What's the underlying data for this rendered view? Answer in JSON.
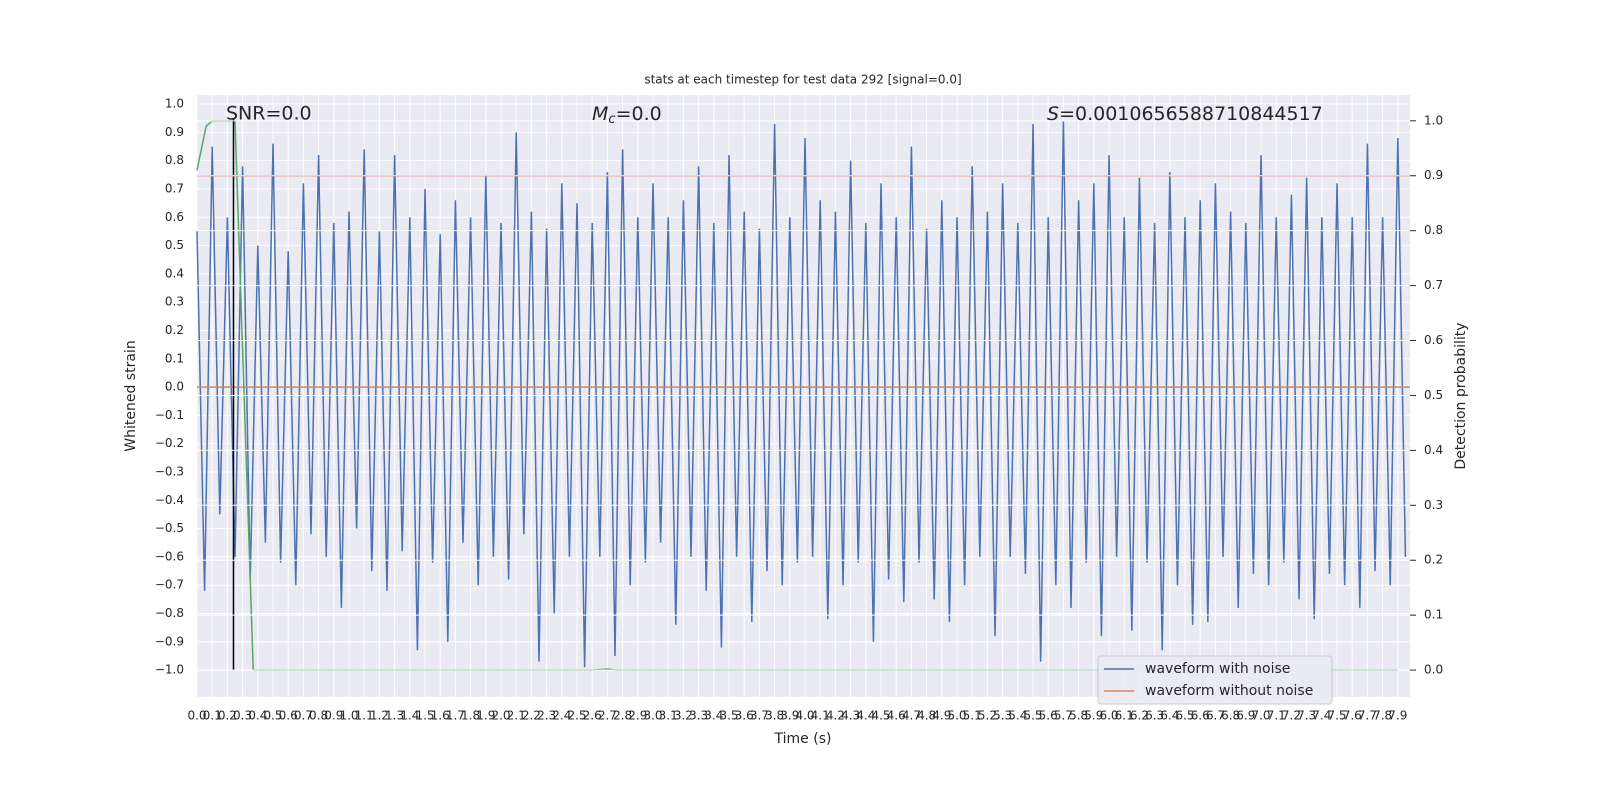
{
  "chart_data": {
    "type": "line",
    "title": "stats at each timestep for test data 292 [signal=0.0]",
    "xlabel": "Time (s)",
    "ylabel": "Whitened strain",
    "y2label": "Detection probability",
    "snr_label": "SNR=0.0",
    "mc_label": {
      "symbol": "M",
      "subscript": "c",
      "text": "=0.0"
    },
    "s_label": {
      "symbol": "S",
      "text": "=0.0010656588710844517"
    },
    "xlim": [
      0,
      7.98
    ],
    "ylim": [
      -1.095,
      1.032
    ],
    "y2lim": [
      -0.049,
      1.047
    ],
    "grid": true,
    "legend": "lower right",
    "xticks": [
      {
        "value": 0,
        "label": "0.0"
      },
      0.1,
      0.2,
      0.3,
      0.4,
      0.5,
      0.6,
      0.7,
      0.8,
      0.9,
      {
        "value": 1,
        "label": "1.0"
      },
      1.1,
      1.2,
      1.3,
      1.4,
      1.5,
      1.6,
      1.7,
      1.8,
      1.9,
      {
        "value": 2,
        "label": "2.0"
      },
      2.1,
      2.2,
      2.3,
      2.4,
      2.5,
      2.6,
      2.7,
      2.8,
      2.9,
      {
        "value": 3,
        "label": "3.0"
      },
      3.1,
      3.2,
      3.3,
      3.4,
      3.5,
      3.6,
      3.7,
      3.8,
      3.9,
      {
        "value": 4,
        "label": "4.0"
      },
      4.1,
      4.2,
      4.3,
      4.4,
      4.5,
      4.6,
      4.7,
      4.8,
      4.9,
      {
        "value": 5,
        "label": "5.0"
      },
      5.1,
      5.2,
      5.3,
      5.4,
      5.5,
      5.6,
      5.7,
      5.8,
      5.9,
      {
        "value": 6,
        "label": "6.0"
      },
      6.1,
      6.2,
      6.3,
      6.4,
      6.5,
      6.6,
      6.7,
      6.8,
      6.9,
      {
        "value": 7,
        "label": "7.0"
      },
      7.1,
      7.2,
      7.3,
      7.4,
      7.5,
      7.6,
      7.7,
      7.8,
      7.9
    ],
    "yticks": [
      {
        "value": 1,
        "label": "1.0"
      },
      0.9,
      0.8,
      0.7,
      0.6,
      0.5,
      0.4,
      0.3,
      0.2,
      0.1,
      {
        "value": 0,
        "label": "0.0"
      },
      {
        "value": -0.1,
        "label": "−0.1"
      },
      {
        "value": -0.2,
        "label": "−0.2"
      },
      {
        "value": -0.3,
        "label": "−0.3"
      },
      {
        "value": -0.4,
        "label": "−0.4"
      },
      {
        "value": -0.5,
        "label": "−0.5"
      },
      {
        "value": -0.6,
        "label": "−0.6"
      },
      {
        "value": -0.7,
        "label": "−0.7"
      },
      {
        "value": -0.8,
        "label": "−0.8"
      },
      {
        "value": -0.9,
        "label": "−0.9"
      },
      {
        "value": -1,
        "label": "−1.0"
      }
    ],
    "y2ticks": [
      {
        "value": 0,
        "label": "0.0"
      },
      0.1,
      0.2,
      0.3,
      0.4,
      0.5,
      0.6,
      0.7,
      0.8,
      0.9,
      {
        "value": 1,
        "label": "1.0"
      }
    ],
    "series": [
      {
        "name": "waveform with noise",
        "color": "#4c72b0",
        "x": [
          0,
          0.05,
          0.1,
          0.15,
          0.2,
          0.25,
          0.3,
          0.35,
          0.4,
          0.45,
          0.5,
          0.55,
          0.6,
          0.65,
          0.7,
          0.75,
          0.8,
          0.85,
          0.9,
          0.95,
          1,
          1.05,
          1.1,
          1.15,
          1.2,
          1.25,
          1.3,
          1.35,
          1.4,
          1.45,
          1.5,
          1.55,
          1.6,
          1.65,
          1.7,
          1.75,
          1.8,
          1.85,
          1.9,
          1.95,
          2,
          2.05,
          2.1,
          2.15,
          2.2,
          2.25,
          2.3,
          2.35,
          2.4,
          2.45,
          2.5,
          2.55,
          2.6,
          2.65,
          2.7,
          2.75,
          2.8,
          2.85,
          2.9,
          2.95,
          3,
          3.05,
          3.1,
          3.15,
          3.2,
          3.25,
          3.3,
          3.35,
          3.4,
          3.45,
          3.5,
          3.55,
          3.6,
          3.65,
          3.7,
          3.75,
          3.8,
          3.85,
          3.9,
          3.95,
          4,
          4.05,
          4.1,
          4.15,
          4.2,
          4.25,
          4.3,
          4.35,
          4.4,
          4.45,
          4.5,
          4.55,
          4.6,
          4.65,
          4.7,
          4.75,
          4.8,
          4.85,
          4.9,
          4.95,
          5,
          5.05,
          5.1,
          5.15,
          5.2,
          5.25,
          5.3,
          5.35,
          5.4,
          5.45,
          5.5,
          5.55,
          5.6,
          5.65,
          5.7,
          5.75,
          5.8,
          5.85,
          5.9,
          5.95,
          6,
          6.05,
          6.1,
          6.15,
          6.2,
          6.25,
          6.3,
          6.35,
          6.4,
          6.45,
          6.5,
          6.55,
          6.6,
          6.65,
          6.7,
          6.75,
          6.8,
          6.85,
          6.9,
          6.95,
          7,
          7.05,
          7.1,
          7.15,
          7.2,
          7.25,
          7.3,
          7.35,
          7.4,
          7.45,
          7.5,
          7.55,
          7.6,
          7.65,
          7.7,
          7.75,
          7.8,
          7.85,
          7.9,
          7.95
        ],
        "values": [
          0.55,
          -0.72,
          0.85,
          -0.45,
          0.6,
          -0.6,
          0.78,
          -0.68,
          0.5,
          -0.55,
          0.86,
          -0.62,
          0.48,
          -0.7,
          0.72,
          -0.52,
          0.82,
          -0.6,
          0.58,
          -0.78,
          0.62,
          -0.5,
          0.84,
          -0.65,
          0.55,
          -0.72,
          0.82,
          -0.58,
          0.6,
          -0.93,
          0.7,
          -0.62,
          0.54,
          -0.9,
          0.66,
          -0.55,
          0.6,
          -0.7,
          0.75,
          -0.6,
          0.58,
          -0.68,
          0.9,
          -0.52,
          0.62,
          -0.97,
          0.56,
          -0.8,
          0.72,
          -0.6,
          0.65,
          -0.99,
          0.58,
          -0.6,
          0.76,
          -0.95,
          0.84,
          -0.7,
          0.6,
          -0.62,
          0.72,
          -0.55,
          0.6,
          -0.84,
          0.66,
          -0.6,
          0.78,
          -0.72,
          0.58,
          -0.92,
          0.82,
          -0.6,
          0.62,
          -0.83,
          0.56,
          -0.65,
          0.93,
          -0.7,
          0.6,
          -0.62,
          0.88,
          -0.6,
          0.66,
          -0.82,
          0.62,
          -0.7,
          0.8,
          -0.62,
          0.58,
          -0.9,
          0.72,
          -0.68,
          0.6,
          -0.76,
          0.85,
          -0.62,
          0.56,
          -0.75,
          0.66,
          -0.83,
          0.6,
          -0.7,
          0.78,
          -0.6,
          0.62,
          -0.88,
          0.72,
          -0.6,
          0.58,
          -0.66,
          0.93,
          -0.97,
          0.6,
          -0.7,
          0.94,
          -0.78,
          0.66,
          -0.62,
          0.72,
          -0.88,
          0.82,
          -0.6,
          0.6,
          -0.86,
          0.74,
          -0.62,
          0.58,
          -0.93,
          0.76,
          -0.7,
          0.6,
          -0.84,
          0.66,
          -0.83,
          0.72,
          -0.6,
          0.62,
          -0.78,
          0.58,
          -0.66,
          0.82,
          -0.7,
          0.6,
          -0.62,
          0.68,
          -0.75,
          0.74,
          -0.82,
          0.6,
          -0.66,
          0.72,
          -0.7,
          0.6,
          -0.78,
          0.86,
          -0.65,
          0.6,
          -0.7,
          0.88,
          -0.6
        ]
      },
      {
        "name": "waveform without noise",
        "color": "#dd8452",
        "x": [
          0,
          7.98
        ],
        "values": [
          0,
          0
        ]
      },
      {
        "color": "#55a868",
        "axis": "y2",
        "x": [
          0,
          0.06,
          0.1,
          0.25,
          0.37,
          2.6,
          2.7,
          2.75,
          7.9
        ],
        "values": [
          0.91,
          0.99,
          1.0,
          1.0,
          0.0,
          0.0,
          0.002,
          0.0,
          0.0
        ]
      }
    ],
    "hlines": [
      {
        "value": 0.9,
        "axis": "y2",
        "color": "#c44e52"
      }
    ],
    "vlines": [
      {
        "x": 0.24,
        "ymin": -1.0,
        "ymax": 0.95,
        "color": "#000000"
      }
    ]
  }
}
